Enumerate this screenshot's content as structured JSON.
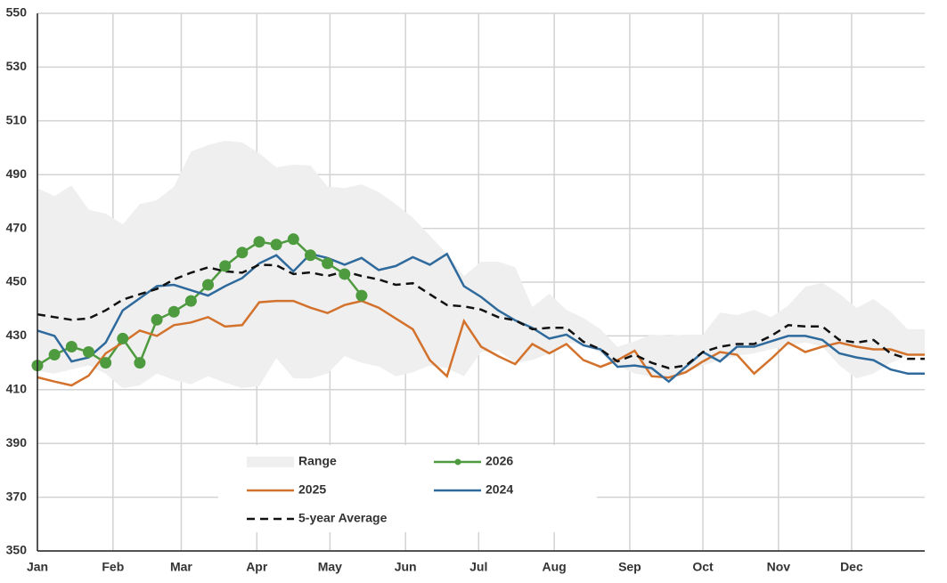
{
  "chart_data": {
    "type": "line",
    "x": [
      0,
      7,
      14,
      21,
      28,
      35,
      42,
      49,
      56,
      63,
      70,
      77,
      84,
      91,
      98,
      105,
      112,
      119,
      126,
      133,
      140,
      147,
      154,
      161,
      168,
      175,
      182,
      189,
      196,
      203,
      210,
      217,
      224,
      231,
      238,
      245,
      252,
      259,
      266,
      273,
      280,
      287,
      294,
      301,
      308,
      315,
      322,
      329,
      336,
      343,
      350,
      357,
      364
    ],
    "xlim": [
      0,
      364
    ],
    "xticks": [
      {
        "value": 0,
        "label": "Jan"
      },
      {
        "value": 31,
        "label": "Feb"
      },
      {
        "value": 59,
        "label": "Mar"
      },
      {
        "value": 90,
        "label": "Apr"
      },
      {
        "value": 120,
        "label": "May"
      },
      {
        "value": 151,
        "label": "Jun"
      },
      {
        "value": 181,
        "label": "Jul"
      },
      {
        "value": 212,
        "label": "Aug"
      },
      {
        "value": 243,
        "label": "Sep"
      },
      {
        "value": 273,
        "label": "Oct"
      },
      {
        "value": 304,
        "label": "Nov"
      },
      {
        "value": 334,
        "label": "Dec"
      }
    ],
    "ylim": [
      350,
      550
    ],
    "yticks": [
      350,
      370,
      390,
      410,
      430,
      450,
      470,
      490,
      510,
      530,
      550
    ],
    "grid": true,
    "series": [
      {
        "name": "Range",
        "color": "#efefef",
        "upper": [
          485,
          482,
          486,
          477,
          475.5,
          471.5,
          479,
          480.5,
          485.5,
          498.6,
          501,
          502.6,
          502,
          498,
          492.7,
          493.7,
          493.4,
          485.5,
          485,
          486.4,
          483.5,
          479,
          474,
          467.3,
          460.5,
          452.3,
          457.6,
          457.6,
          455.6,
          440.7,
          445.7,
          439.7,
          436.7,
          432.5,
          425.9,
          428,
          430.5,
          430,
          430.5,
          430.5,
          438.7,
          437.7,
          439.7,
          437,
          441.3,
          448.3,
          449.7,
          445.7,
          440.4,
          443.7,
          439,
          432.5,
          432.5
        ],
        "lower": [
          417,
          416,
          417.5,
          419,
          416,
          410.5,
          411.6,
          416,
          413.6,
          412,
          415,
          412.6,
          410.6,
          411.3,
          421.8,
          414.2,
          414.2,
          416,
          422.5,
          420,
          418.6,
          415,
          416.5,
          419,
          418,
          415,
          424,
          424.6,
          420,
          421,
          423.5,
          427.5,
          427,
          423.5,
          419,
          416,
          415,
          414.2,
          416.5,
          419,
          421,
          422.5,
          423.5,
          425,
          426.5,
          427.5,
          426,
          419,
          414.2,
          416,
          420,
          422.5,
          422.5
        ]
      },
      {
        "name": "2026",
        "color": "#4e9a3e",
        "values": [
          419,
          423,
          426,
          424,
          420,
          429,
          420,
          436,
          439,
          443,
          449,
          456,
          461,
          465,
          464,
          466,
          460,
          457,
          453,
          445,
          null,
          null,
          null,
          null,
          null,
          null,
          null,
          null,
          null,
          null,
          null,
          null,
          null,
          null,
          null,
          null,
          null,
          null,
          null,
          null,
          null,
          null,
          null,
          null,
          null,
          null,
          null,
          null,
          null,
          null,
          null,
          null,
          null
        ]
      },
      {
        "name": "2025",
        "color": "#d3722c",
        "values": [
          414.6,
          413,
          411.6,
          415.2,
          423.5,
          427.5,
          432,
          430,
          434,
          435,
          437,
          433.5,
          434,
          442.5,
          443,
          443,
          440.5,
          438.5,
          441.5,
          443,
          440.5,
          436.5,
          432.5,
          421,
          415,
          435.5,
          426,
          422.5,
          419.5,
          427,
          423.5,
          427,
          421,
          418.5,
          421,
          424.5,
          415,
          414.5,
          416.5,
          420.5,
          424,
          423,
          416,
          421.5,
          427.5,
          424,
          426,
          427.5,
          426,
          425,
          425,
          423,
          423
        ]
      },
      {
        "name": "2024",
        "color": "#2f6a9c",
        "values": [
          432,
          430,
          420.5,
          422,
          427.5,
          439.5,
          444,
          448.5,
          449,
          447,
          445,
          448.5,
          451.5,
          457,
          460,
          454,
          460.5,
          459,
          456.5,
          459,
          454.5,
          456,
          459.3,
          456.5,
          460.5,
          448.5,
          444.5,
          439.5,
          435.8,
          433,
          429,
          430.5,
          426.5,
          425,
          418.5,
          419,
          418,
          413,
          418.5,
          424,
          420.5,
          426,
          426,
          428,
          430,
          430,
          428.5,
          423.5,
          422,
          421,
          417.5,
          416,
          416
        ]
      },
      {
        "name": "5-year Average",
        "color": "#111111",
        "dashed": true,
        "values": [
          438,
          437,
          436,
          436.5,
          439.5,
          443.5,
          445.5,
          447.5,
          451,
          453.5,
          455.5,
          454,
          453.5,
          456.5,
          456.3,
          453,
          453.6,
          452.3,
          454,
          452.3,
          451,
          449,
          449.6,
          445.5,
          441.5,
          441,
          439.8,
          437,
          435.8,
          432.5,
          433,
          433,
          427.8,
          425,
          420.5,
          423,
          420,
          418,
          419,
          424,
          426,
          427,
          427,
          430,
          434,
          433.5,
          433.5,
          428.5,
          427.5,
          428.5,
          423.5,
          421.5,
          421.5
        ]
      }
    ]
  }
}
